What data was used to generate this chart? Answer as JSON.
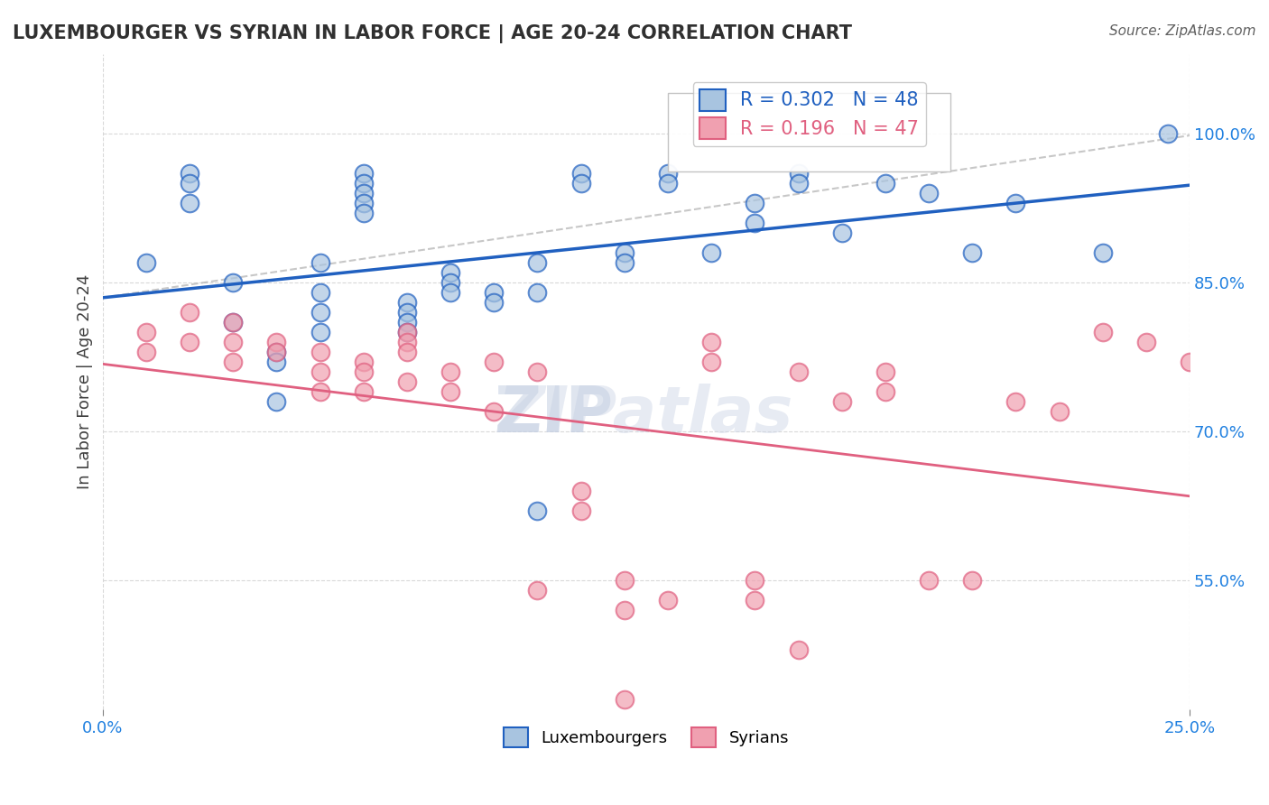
{
  "title": "LUXEMBOURGER VS SYRIAN IN LABOR FORCE | AGE 20-24 CORRELATION CHART",
  "source": "Source: ZipAtlas.com",
  "xlabel": "",
  "ylabel": "In Labor Force | Age 20-24",
  "xlim": [
    0.0,
    0.25
  ],
  "ylim": [
    0.42,
    1.08
  ],
  "ytick_labels": [
    "55.0%",
    "70.0%",
    "85.0%",
    "100.0%"
  ],
  "ytick_values": [
    0.55,
    0.7,
    0.85,
    1.0
  ],
  "xtick_labels": [
    "0.0%",
    "25.0%"
  ],
  "xtick_values": [
    0.0,
    0.25
  ],
  "r_lux": 0.302,
  "n_lux": 48,
  "r_syr": 0.196,
  "n_syr": 47,
  "lux_color": "#a8c4e0",
  "syr_color": "#f0a0b0",
  "lux_line_color": "#2060c0",
  "syr_line_color": "#e06080",
  "dashed_line_color": "#b0b0b0",
  "lux_x": [
    0.01,
    0.02,
    0.02,
    0.02,
    0.03,
    0.03,
    0.04,
    0.04,
    0.04,
    0.05,
    0.05,
    0.05,
    0.05,
    0.06,
    0.06,
    0.06,
    0.06,
    0.06,
    0.07,
    0.07,
    0.07,
    0.07,
    0.08,
    0.08,
    0.08,
    0.09,
    0.09,
    0.1,
    0.1,
    0.1,
    0.11,
    0.11,
    0.12,
    0.12,
    0.13,
    0.13,
    0.14,
    0.15,
    0.15,
    0.16,
    0.16,
    0.17,
    0.18,
    0.19,
    0.2,
    0.21,
    0.23,
    0.245
  ],
  "lux_y": [
    0.87,
    0.93,
    0.96,
    0.95,
    0.85,
    0.81,
    0.78,
    0.77,
    0.73,
    0.87,
    0.84,
    0.82,
    0.8,
    0.96,
    0.95,
    0.94,
    0.93,
    0.92,
    0.83,
    0.82,
    0.81,
    0.8,
    0.86,
    0.85,
    0.84,
    0.84,
    0.83,
    0.87,
    0.84,
    0.62,
    0.96,
    0.95,
    0.88,
    0.87,
    0.96,
    0.95,
    0.88,
    0.93,
    0.91,
    0.96,
    0.95,
    0.9,
    0.95,
    0.94,
    0.88,
    0.93,
    0.88,
    1.0
  ],
  "syr_x": [
    0.01,
    0.01,
    0.02,
    0.02,
    0.03,
    0.03,
    0.03,
    0.04,
    0.04,
    0.05,
    0.05,
    0.05,
    0.06,
    0.06,
    0.06,
    0.07,
    0.07,
    0.07,
    0.07,
    0.08,
    0.08,
    0.09,
    0.09,
    0.1,
    0.1,
    0.11,
    0.11,
    0.12,
    0.12,
    0.13,
    0.14,
    0.14,
    0.15,
    0.15,
    0.16,
    0.17,
    0.18,
    0.18,
    0.19,
    0.2,
    0.21,
    0.22,
    0.23,
    0.24,
    0.25,
    0.16,
    0.12
  ],
  "syr_y": [
    0.8,
    0.78,
    0.82,
    0.79,
    0.81,
    0.79,
    0.77,
    0.79,
    0.78,
    0.78,
    0.76,
    0.74,
    0.77,
    0.76,
    0.74,
    0.8,
    0.79,
    0.78,
    0.75,
    0.76,
    0.74,
    0.77,
    0.72,
    0.76,
    0.54,
    0.64,
    0.62,
    0.55,
    0.52,
    0.53,
    0.79,
    0.77,
    0.55,
    0.53,
    0.76,
    0.73,
    0.76,
    0.74,
    0.55,
    0.55,
    0.73,
    0.72,
    0.8,
    0.79,
    0.77,
    0.48,
    0.43
  ],
  "watermark": "ZIPatlas",
  "background_color": "#ffffff",
  "grid_color": "#d0d0d0"
}
